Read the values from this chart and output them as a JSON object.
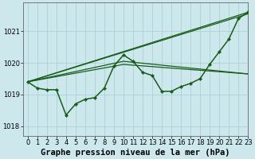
{
  "background_color": "#cce8ec",
  "grid_color": "#aaccd4",
  "line_color": "#1a5c1a",
  "marker_color": "#1a5c1a",
  "xlabel": "Graphe pression niveau de la mer (hPa)",
  "xlim": [
    -0.5,
    23
  ],
  "ylim": [
    1017.7,
    1021.9
  ],
  "yticks": [
    1018,
    1019,
    1020,
    1021
  ],
  "xtick_labels": [
    "0",
    "1",
    "2",
    "3",
    "4",
    "5",
    "6",
    "7",
    "8",
    "9",
    "10",
    "11",
    "12",
    "13",
    "14",
    "15",
    "16",
    "17",
    "18",
    "19",
    "20",
    "21",
    "22",
    "23"
  ],
  "xtick_positions": [
    0,
    1,
    2,
    3,
    4,
    5,
    6,
    7,
    8,
    9,
    10,
    11,
    12,
    13,
    14,
    15,
    16,
    17,
    18,
    19,
    20,
    21,
    22,
    23
  ],
  "series_main": [
    1019.4,
    1019.2,
    1019.15,
    1019.15,
    1018.35,
    1018.7,
    1018.85,
    1018.9,
    1019.2,
    1019.9,
    1020.25,
    1020.05,
    1019.7,
    1019.6,
    1019.1,
    1019.1,
    1019.25,
    1019.35,
    1019.5,
    1019.95,
    1020.35,
    1020.75,
    1021.4,
    1021.6
  ],
  "straight_lines": [
    {
      "x0": 0,
      "y0": 1019.4,
      "x1": 23,
      "y1": 1021.55
    },
    {
      "x0": 0,
      "y0": 1019.4,
      "x1": 23,
      "y1": 1021.6
    },
    {
      "x0": 0,
      "y0": 1019.4,
      "x1": 10,
      "y1": 1020.05,
      "x2": 23,
      "y2": 1019.65
    },
    {
      "x0": 0,
      "y0": 1019.4,
      "x1": 10,
      "y1": 1019.95,
      "x2": 23,
      "y2": 1019.65
    }
  ],
  "tick_fontsize": 6,
  "xlabel_fontsize": 7.5,
  "line_width": 0.9
}
